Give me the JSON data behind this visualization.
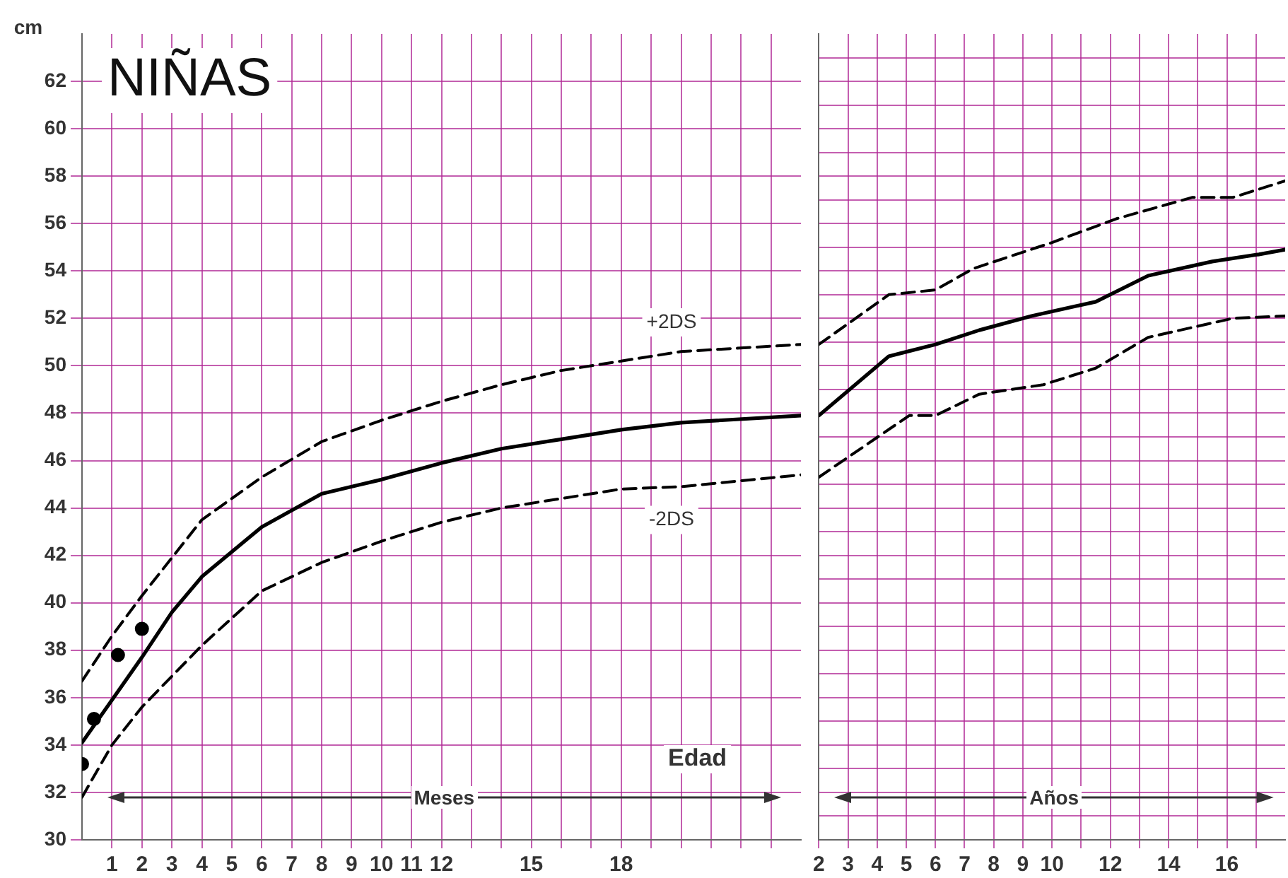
{
  "chart_data": [
    {
      "type": "line",
      "title": "NIÑAS",
      "ylabel": "cm",
      "xlabel": "Meses",
      "annotations": [
        "Edad",
        "+2DS",
        "-2DS"
      ],
      "xlim": [
        0,
        24
      ],
      "xticks": [
        1,
        2,
        3,
        4,
        5,
        6,
        7,
        8,
        9,
        10,
        11,
        12,
        {
          "value": 13,
          "label": null
        },
        {
          "value": 14,
          "label": null
        },
        15,
        {
          "value": 16,
          "label": null
        },
        {
          "value": 17,
          "label": null
        },
        18,
        {
          "value": 19,
          "label": null
        },
        {
          "value": 20,
          "label": null
        },
        {
          "value": 21,
          "label": null
        },
        {
          "value": 22,
          "label": null
        },
        {
          "value": 23,
          "label": null
        }
      ],
      "ylim": [
        30,
        64
      ],
      "yticks": [
        30,
        32,
        34,
        36,
        38,
        40,
        42,
        44,
        46,
        48,
        50,
        52,
        54,
        56,
        58,
        60,
        62
      ],
      "grid": true,
      "marker": "none",
      "series": [
        {
          "color": "#000000",
          "line_style": "solid",
          "x": [
            0,
            1,
            2,
            3,
            4,
            6,
            8,
            10,
            12,
            14,
            16,
            18,
            20,
            24
          ],
          "values": [
            34.1,
            35.9,
            37.7,
            39.6,
            41.1,
            43.2,
            44.6,
            45.2,
            45.9,
            46.5,
            46.9,
            47.3,
            47.6,
            47.9
          ]
        },
        {
          "color": "#000000",
          "line_style": "dashed",
          "x": [
            0,
            1,
            2,
            4,
            6,
            8,
            10,
            12,
            14,
            16,
            18,
            20,
            24
          ],
          "values": [
            36.7,
            38.6,
            40.3,
            43.5,
            45.3,
            46.8,
            47.7,
            48.5,
            49.2,
            49.8,
            50.2,
            50.6,
            50.9
          ]
        },
        {
          "color": "#000000",
          "line_style": "dashed",
          "x": [
            0,
            1,
            2,
            4,
            6,
            8,
            10,
            12,
            14,
            16,
            18,
            20,
            24
          ],
          "values": [
            31.8,
            34.0,
            35.6,
            38.2,
            40.5,
            41.7,
            42.6,
            43.4,
            44.0,
            44.4,
            44.8,
            44.9,
            45.4
          ]
        },
        {
          "type": "scatter",
          "color": "#000000",
          "marker": "circle",
          "x": [
            0,
            0.4,
            1.2,
            2
          ],
          "values": [
            33.2,
            35.1,
            37.8,
            38.9
          ]
        }
      ]
    },
    {
      "type": "line",
      "xlabel": "Años",
      "xlim": [
        2,
        18
      ],
      "xticks": [
        2,
        3,
        4,
        5,
        6,
        7,
        8,
        9,
        10,
        {
          "value": 11,
          "label": null
        },
        12,
        {
          "value": 13,
          "label": null
        },
        14,
        {
          "value": 15,
          "label": null
        },
        16,
        {
          "value": 17,
          "label": null
        }
      ],
      "ylim": [
        30,
        64
      ],
      "yticks": [
        {
          "value": 30,
          "label": null
        },
        {
          "value": 31,
          "label": null
        },
        {
          "value": 32,
          "label": null
        },
        {
          "value": 33,
          "label": null
        },
        {
          "value": 34,
          "label": null
        },
        {
          "value": 35,
          "label": null
        },
        {
          "value": 36,
          "label": null
        },
        {
          "value": 37,
          "label": null
        },
        {
          "value": 38,
          "label": null
        },
        {
          "value": 39,
          "label": null
        },
        {
          "value": 40,
          "label": null
        },
        {
          "value": 41,
          "label": null
        },
        {
          "value": 42,
          "label": null
        },
        {
          "value": 43,
          "label": null
        },
        {
          "value": 44,
          "label": null
        },
        {
          "value": 45,
          "label": null
        },
        {
          "value": 46,
          "label": null
        },
        {
          "value": 47,
          "label": null
        },
        {
          "value": 48,
          "label": null
        },
        {
          "value": 49,
          "label": null
        },
        {
          "value": 50,
          "label": null
        },
        {
          "value": 51,
          "label": null
        },
        {
          "value": 52,
          "label": null
        },
        {
          "value": 53,
          "label": null
        },
        {
          "value": 54,
          "label": null
        },
        {
          "value": 55,
          "label": null
        },
        {
          "value": 56,
          "label": null
        },
        {
          "value": 57,
          "label": null
        },
        {
          "value": 58,
          "label": null
        },
        {
          "value": 59,
          "label": null
        },
        {
          "value": 60,
          "label": null
        },
        {
          "value": 61,
          "label": null
        },
        {
          "value": 62,
          "label": null
        },
        {
          "value": 63,
          "label": null
        }
      ],
      "tick_labels": "x",
      "grid": true,
      "marker": "none",
      "series": [
        {
          "color": "#000000",
          "line_style": "solid",
          "x": [
            2,
            4.4,
            6,
            7.5,
            9.3,
            11.5,
            13.3,
            15.5,
            17.1,
            18
          ],
          "values": [
            47.9,
            50.4,
            50.9,
            51.5,
            52.1,
            52.7,
            53.8,
            54.4,
            54.7,
            54.9
          ]
        },
        {
          "color": "#000000",
          "line_style": "dashed",
          "x": [
            2,
            4.4,
            6,
            7.3,
            10,
            12.2,
            14.8,
            16.2,
            18
          ],
          "values": [
            50.9,
            53.0,
            53.2,
            54.1,
            55.2,
            56.2,
            57.1,
            57.1,
            57.8
          ]
        },
        {
          "color": "#000000",
          "line_style": "dashed",
          "x": [
            2,
            5.1,
            6,
            7.5,
            9.7,
            11.5,
            13.3,
            16.2,
            18
          ],
          "values": [
            45.3,
            47.9,
            47.9,
            48.8,
            49.2,
            49.9,
            51.2,
            52.0,
            52.1
          ]
        }
      ]
    }
  ]
}
